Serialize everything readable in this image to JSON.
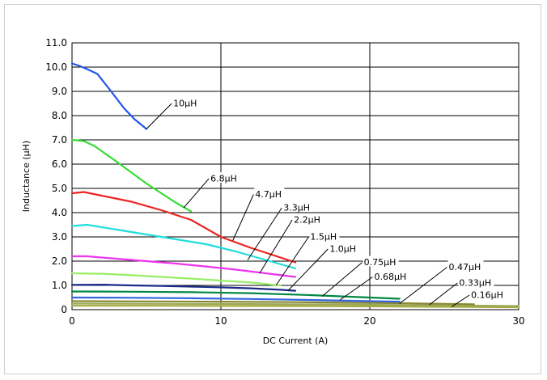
{
  "chart_data": {
    "type": "line",
    "xlabel": "DC Current (A)",
    "ylabel": "Inductance (µH)",
    "xlim": [
      0,
      30
    ],
    "ylim": [
      0,
      11
    ],
    "xticks": [
      0,
      10,
      20,
      30
    ],
    "yticks": [
      0,
      1,
      2,
      3,
      4,
      5,
      6,
      7,
      8,
      9,
      10,
      11
    ],
    "xtick_labels": [
      "0",
      "10",
      "20",
      "30"
    ],
    "ytick_labels": [
      "0",
      "1.0",
      "2.0",
      "3.0",
      "4.0",
      "5.0",
      "6.0",
      "7.0",
      "8.0",
      "9.0",
      "10.0",
      "11.0"
    ],
    "grid": true,
    "series": [
      {
        "name": "10µH",
        "color": "#2255ee",
        "x": [
          0,
          0.5,
          1,
          1.7,
          2.5,
          3.5,
          4.2,
          5
        ],
        "y": [
          10.15,
          10.05,
          9.92,
          9.72,
          9.1,
          8.3,
          7.85,
          7.45
        ]
      },
      {
        "name": "6.8µH",
        "color": "#33dd33",
        "x": [
          0,
          0.8,
          1.5,
          3,
          5,
          7,
          8
        ],
        "y": [
          7.0,
          6.95,
          6.75,
          6.1,
          5.2,
          4.4,
          4.05
        ]
      },
      {
        "name": "4.7µH",
        "color": "#ee2222",
        "x": [
          0,
          0.8,
          2,
          4,
          6,
          8,
          10,
          12,
          15
        ],
        "y": [
          4.8,
          4.85,
          4.7,
          4.45,
          4.1,
          3.7,
          3.0,
          2.55,
          1.95
        ]
      },
      {
        "name": "3.3µH",
        "color": "#22dddd",
        "x": [
          0,
          1,
          3,
          5,
          7,
          9,
          11,
          13,
          15
        ],
        "y": [
          3.45,
          3.5,
          3.3,
          3.1,
          2.9,
          2.7,
          2.4,
          2.05,
          1.7
        ]
      },
      {
        "name": "2.2µH",
        "color": "#ee33ee",
        "x": [
          0,
          1,
          3,
          5,
          7,
          9,
          11,
          13,
          15
        ],
        "y": [
          2.2,
          2.2,
          2.1,
          2.0,
          1.9,
          1.78,
          1.65,
          1.5,
          1.35
        ]
      },
      {
        "name": "1.5µH",
        "color": "#99ee66",
        "x": [
          0,
          2,
          4,
          6,
          8,
          10,
          12,
          14
        ],
        "y": [
          1.5,
          1.48,
          1.42,
          1.35,
          1.28,
          1.2,
          1.12,
          1.0
        ]
      },
      {
        "name": "1.0µH",
        "color": "#1a2a88",
        "x": [
          0,
          2,
          4,
          6,
          8,
          10,
          12,
          14,
          15
        ],
        "y": [
          1.02,
          1.03,
          1.0,
          0.98,
          0.95,
          0.92,
          0.88,
          0.82,
          0.78
        ]
      },
      {
        "name": "0.75µH",
        "color": "#008844",
        "x": [
          0,
          4,
          8,
          12,
          16,
          20,
          22
        ],
        "y": [
          0.75,
          0.74,
          0.72,
          0.68,
          0.6,
          0.5,
          0.45
        ]
      },
      {
        "name": "0.68µH",
        "color": "#3366dd",
        "x": [
          0,
          4,
          8,
          12,
          16,
          20,
          22
        ],
        "y": [
          0.5,
          0.49,
          0.47,
          0.44,
          0.4,
          0.35,
          0.33
        ]
      },
      {
        "name": "0.47µH",
        "color": "#888833",
        "x": [
          0,
          5,
          10,
          15,
          20,
          25,
          27
        ],
        "y": [
          0.35,
          0.34,
          0.33,
          0.31,
          0.28,
          0.24,
          0.22
        ]
      },
      {
        "name": "0.33µH",
        "color": "#99aa55",
        "x": [
          0,
          6,
          12,
          18,
          24,
          30
        ],
        "y": [
          0.25,
          0.24,
          0.23,
          0.21,
          0.18,
          0.15
        ]
      },
      {
        "name": "0.16µH",
        "color": "#aaaa44",
        "x": [
          0,
          6,
          12,
          18,
          24,
          30
        ],
        "y": [
          0.16,
          0.16,
          0.15,
          0.14,
          0.12,
          0.1
        ]
      }
    ],
    "labels": [
      {
        "series": "10µH",
        "text": "10µH",
        "tx": 6.8,
        "ty": 8.5,
        "ax": 5.0,
        "ay": 7.45
      },
      {
        "series": "6.8µH",
        "text": "6.8µH",
        "tx": 9.3,
        "ty": 5.4,
        "ax": 7.5,
        "ay": 4.2
      },
      {
        "series": "4.7µH",
        "text": "4.7µH",
        "tx": 12.3,
        "ty": 4.75,
        "ax": 10.8,
        "ay": 2.85
      },
      {
        "series": "3.3µH",
        "text": "3.3µH",
        "tx": 14.2,
        "ty": 4.2,
        "ax": 11.8,
        "ay": 2.05
      },
      {
        "series": "2.2µH",
        "text": "2.2µH",
        "tx": 14.9,
        "ty": 3.7,
        "ax": 12.6,
        "ay": 1.5
      },
      {
        "series": "1.5µH",
        "text": "1.5µH",
        "tx": 16.0,
        "ty": 3.0,
        "ax": 13.7,
        "ay": 1.0
      },
      {
        "series": "1.0µH",
        "text": "1.0µH",
        "tx": 17.3,
        "ty": 2.5,
        "ax": 14.5,
        "ay": 0.78
      },
      {
        "series": "0.75µH",
        "text": "0.75µH",
        "tx": 19.6,
        "ty": 1.95,
        "ax": 16.8,
        "ay": 0.55
      },
      {
        "series": "0.68µH",
        "text": "0.68µH",
        "tx": 20.3,
        "ty": 1.35,
        "ax": 18.0,
        "ay": 0.4
      },
      {
        "series": "0.47µH",
        "text": "0.47µH",
        "tx": 25.3,
        "ty": 1.75,
        "ax": 22.0,
        "ay": 0.25
      },
      {
        "series": "0.33µH",
        "text": "0.33µH",
        "tx": 26.0,
        "ty": 1.1,
        "ax": 24.0,
        "ay": 0.2
      },
      {
        "series": "0.16µH",
        "text": "0.16µH",
        "tx": 26.8,
        "ty": 0.6,
        "ax": 25.5,
        "ay": 0.12
      }
    ]
  }
}
